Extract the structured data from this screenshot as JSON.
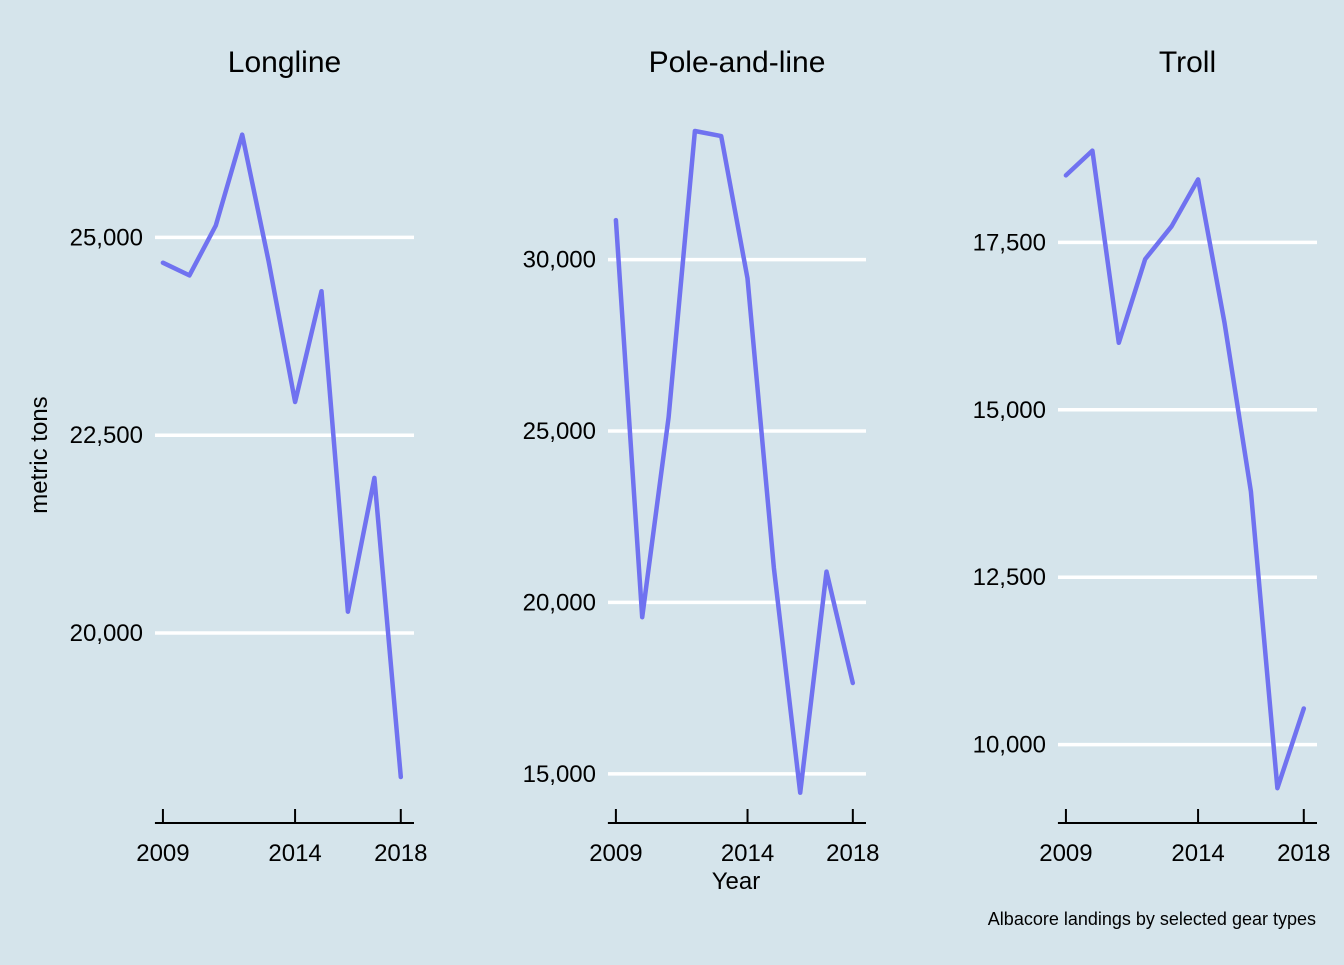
{
  "colors": {
    "background": "#d5e4eb",
    "gridline": "#ffffff",
    "line": "#7072f0",
    "axis": "#000000"
  },
  "labels": {
    "xlabel": "Year",
    "ylabel": "metric tons",
    "caption": "Albacore landings by selected gear types"
  },
  "chart_data": [
    {
      "type": "line",
      "title": "Longline",
      "x": [
        2009,
        2010,
        2011,
        2012,
        2013,
        2014,
        2015,
        2016,
        2017,
        2018
      ],
      "values": [
        24680,
        24520,
        25150,
        26300,
        24700,
        22920,
        24320,
        20270,
        21960,
        18180
      ],
      "xticks": [
        2009,
        2014,
        2018
      ],
      "yticks": [
        20000,
        22500,
        25000
      ],
      "ytick_labels": [
        "20,000",
        "22,500",
        "25,000"
      ],
      "xlim": [
        2008.7,
        2018.5
      ],
      "ylim": [
        17700,
        26800
      ],
      "grid": true
    },
    {
      "type": "line",
      "title": "Pole-and-line",
      "x": [
        2009,
        2010,
        2011,
        2012,
        2013,
        2014,
        2015,
        2016,
        2017,
        2018
      ],
      "values": [
        31150,
        19570,
        25400,
        33750,
        33600,
        29450,
        21000,
        14450,
        20900,
        17650
      ],
      "xticks": [
        2009,
        2014,
        2018
      ],
      "yticks": [
        15000,
        20000,
        25000,
        30000
      ],
      "ytick_labels": [
        "15,000",
        "20,000",
        "25,000",
        "30,000"
      ],
      "xlim": [
        2008.7,
        2018.5
      ],
      "ylim": [
        13800,
        34800
      ],
      "grid": true
    },
    {
      "type": "line",
      "title": "Troll",
      "x": [
        2009,
        2010,
        2011,
        2012,
        2013,
        2014,
        2015,
        2016,
        2017,
        2018
      ],
      "values": [
        18500,
        18870,
        16000,
        17250,
        17740,
        18440,
        16300,
        13780,
        9350,
        10540
      ],
      "xticks": [
        2009,
        2014,
        2018
      ],
      "yticks": [
        10000,
        12500,
        15000,
        17500
      ],
      "ytick_labels": [
        "10,000",
        "12,500",
        "15,000",
        "17,500"
      ],
      "xlim": [
        2008.7,
        2018.5
      ],
      "ylim": [
        8950,
        19700
      ],
      "grid": true
    }
  ]
}
